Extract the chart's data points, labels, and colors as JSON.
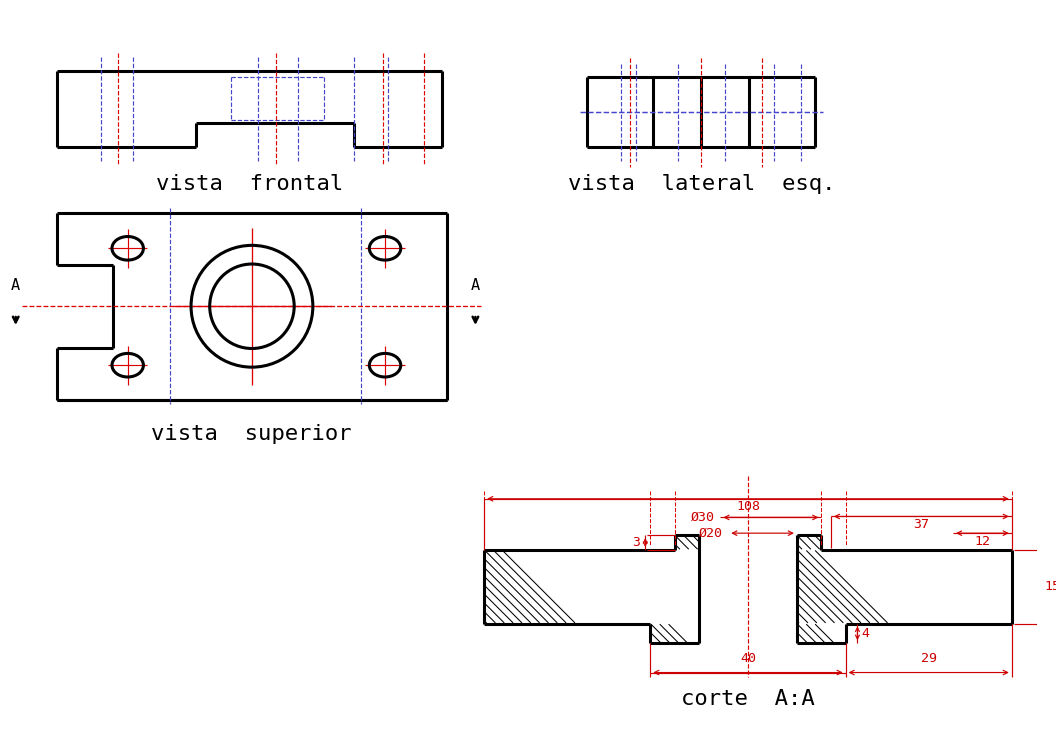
{
  "bg_color": "#ffffff",
  "line_color": "#000000",
  "red_color": "#dd0000",
  "blue_color": "#4444cc",
  "dim_color": "#cc0000",
  "font_family": "monospace",
  "title_fontsize": 16,
  "dim_fontsize": 9.5,
  "view_labels": {
    "frontal": "vista  frontal",
    "lateral": "vista  lateral  esq.",
    "superior": "vista  superior",
    "corte": "corte  A:A"
  }
}
